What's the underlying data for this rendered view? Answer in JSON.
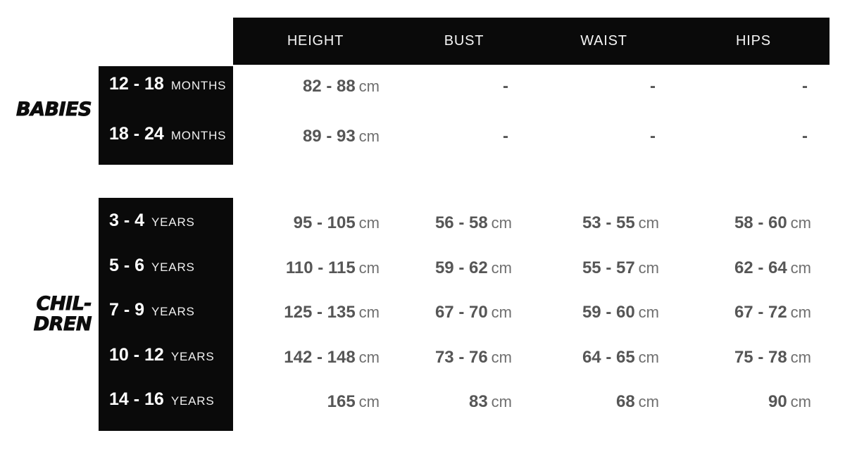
{
  "colors": {
    "background": "#ffffff",
    "panel": "#0a0a0a",
    "header_text": "#f5f5f5",
    "value_number": "#565656",
    "value_unit": "#6f6f6f",
    "label_number": "#ffffff",
    "label_word": "#f0f0f0",
    "section_label": "#0d0d0d"
  },
  "chart_data": {
    "type": "table",
    "columns": [
      "HEIGHT",
      "BUST",
      "WAIST",
      "HIPS"
    ],
    "unit": "cm",
    "sections": [
      {
        "name": "BABIES",
        "label_lines": [
          "BABIES"
        ],
        "rows": [
          {
            "range": "12 - 18",
            "unit_word": "MONTHS",
            "cells": [
              {
                "v": "82 - 88",
                "u": "cm"
              },
              {
                "v": "-",
                "u": ""
              },
              {
                "v": "-",
                "u": ""
              },
              {
                "v": "-",
                "u": ""
              }
            ]
          },
          {
            "range": "18 - 24",
            "unit_word": "MONTHS",
            "cells": [
              {
                "v": "89 - 93",
                "u": "cm"
              },
              {
                "v": "-",
                "u": ""
              },
              {
                "v": "-",
                "u": ""
              },
              {
                "v": "-",
                "u": ""
              }
            ]
          }
        ]
      },
      {
        "name": "CHILDREN",
        "label_lines": [
          "CHIL-",
          "DREN"
        ],
        "rows": [
          {
            "range": "3 - 4",
            "unit_word": "YEARS",
            "cells": [
              {
                "v": "95 - 105",
                "u": "cm"
              },
              {
                "v": "56 - 58",
                "u": "cm"
              },
              {
                "v": "53 - 55",
                "u": "cm"
              },
              {
                "v": "58 - 60",
                "u": "cm"
              }
            ]
          },
          {
            "range": "5 - 6",
            "unit_word": "YEARS",
            "cells": [
              {
                "v": "110 - 115",
                "u": "cm"
              },
              {
                "v": "59 - 62",
                "u": "cm"
              },
              {
                "v": "55 - 57",
                "u": "cm"
              },
              {
                "v": "62 - 64",
                "u": "cm"
              }
            ]
          },
          {
            "range": "7 - 9",
            "unit_word": "YEARS",
            "cells": [
              {
                "v": "125 - 135",
                "u": "cm"
              },
              {
                "v": "67 - 70",
                "u": "cm"
              },
              {
                "v": "59 - 60",
                "u": "cm"
              },
              {
                "v": "67 - 72",
                "u": "cm"
              }
            ]
          },
          {
            "range": "10 - 12",
            "unit_word": "YEARS",
            "cells": [
              {
                "v": "142 - 148",
                "u": "cm"
              },
              {
                "v": "73 - 76",
                "u": "cm"
              },
              {
                "v": "64 - 65",
                "u": "cm"
              },
              {
                "v": "75 - 78",
                "u": "cm"
              }
            ]
          },
          {
            "range": "14 - 16",
            "unit_word": "YEARS",
            "cells": [
              {
                "v": "165",
                "u": "cm"
              },
              {
                "v": "83",
                "u": "cm"
              },
              {
                "v": "68",
                "u": "cm"
              },
              {
                "v": "90",
                "u": "cm"
              }
            ]
          }
        ]
      }
    ]
  }
}
